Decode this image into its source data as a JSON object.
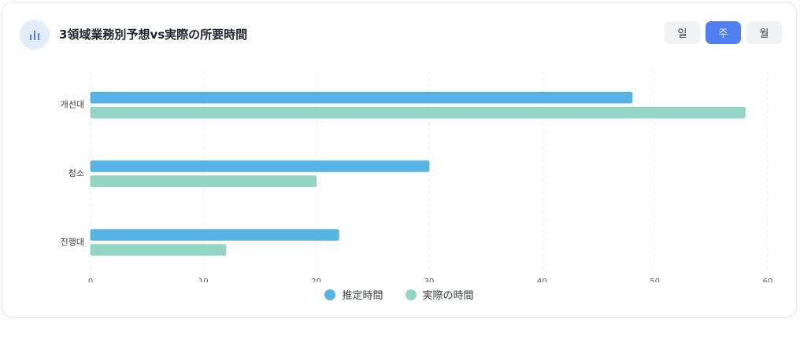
{
  "header": {
    "title": "3領域業務別予想vs実際の所要時間",
    "icon": "bar-chart-icon"
  },
  "tabs": [
    {
      "label": "일",
      "active": false
    },
    {
      "label": "주",
      "active": true
    },
    {
      "label": "월",
      "active": false
    }
  ],
  "colors": {
    "estimated": "#58b3e6",
    "actual": "#93d6c6",
    "accent": "#4f7ff0"
  },
  "chart_data": {
    "type": "bar",
    "orientation": "horizontal",
    "categories": [
      "개선대",
      "청소",
      "진행대"
    ],
    "series": [
      {
        "name": "推定時間",
        "values": [
          48,
          30,
          22
        ]
      },
      {
        "name": "実際の時間",
        "values": [
          58,
          20,
          12
        ]
      }
    ],
    "xlim": [
      0,
      60
    ],
    "xticks": [
      0,
      10,
      20,
      30,
      40,
      50,
      60
    ],
    "grid": true,
    "legend_position": "bottom"
  }
}
